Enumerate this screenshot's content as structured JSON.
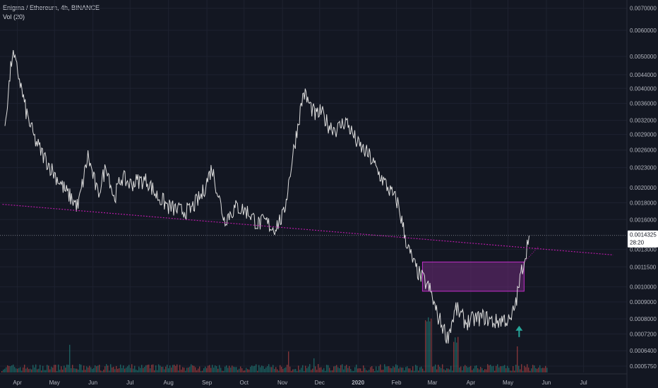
{
  "header": {
    "title": "Enigma / Ethereum, 4h, BINANCE",
    "indicator": "Vol (20)"
  },
  "colors": {
    "background": "#131722",
    "grid": "#1e2230",
    "price_line": "#dcdcdc",
    "trendline": "#b61aa6",
    "rectangle_fill": "#6d2a78",
    "rectangle_border": "#c02ec8",
    "last_price_label": "#ffffff",
    "arrow": "#26a69a",
    "volume_up": "#26a69a",
    "volume_down": "#ef5350",
    "axis_text": "#b2b5be"
  },
  "chart_data": {
    "type": "line",
    "title": "Enigma / Ethereum, 4h, BINANCE",
    "scale": "log",
    "grid": true,
    "ylim": [
      0.00055,
      0.0072
    ],
    "y_ticks": [
      "0.0070000",
      "0.0060000",
      "0.0050000",
      "0.0044000",
      "0.0040000",
      "0.0036000",
      "0.0032000",
      "0.0029000",
      "0.0026000",
      "0.0023000",
      "0.0020000",
      "0.0018000",
      "0.0016000",
      "0.0013000",
      "0.0011500",
      "0.0010000",
      "0.0009000",
      "0.0008000",
      "0.0007200",
      "0.0006400",
      "0.0005750"
    ],
    "x_ticks": [
      "Apr",
      "May",
      "Jun",
      "Jul",
      "Aug",
      "Sep",
      "Oct",
      "Nov",
      "Dec",
      "2020",
      "Feb",
      "Mar",
      "Apr",
      "May",
      "Jun",
      "Jul"
    ],
    "last_price": {
      "value": "0.0014325",
      "countdown": "28:20"
    },
    "series": [
      {
        "x": [
          "2019-03-22",
          "2019-03-28",
          "2019-04-02",
          "2019-04-08",
          "2019-04-15",
          "2019-04-22",
          "2019-05-01",
          "2019-05-10",
          "2019-05-20",
          "2019-05-28",
          "2019-06-05",
          "2019-06-12",
          "2019-06-18",
          "2019-06-24",
          "2019-07-01",
          "2019-07-08",
          "2019-07-15",
          "2019-07-22",
          "2019-08-01",
          "2019-08-10",
          "2019-08-18",
          "2019-08-28",
          "2019-09-05",
          "2019-09-15",
          "2019-09-25",
          "2019-10-05",
          "2019-10-12",
          "2019-10-18",
          "2019-10-25",
          "2019-11-02",
          "2019-11-10",
          "2019-11-18",
          "2019-11-24",
          "2019-11-28",
          "2019-12-02",
          "2019-12-08",
          "2019-12-15",
          "2019-12-22",
          "2020-01-01",
          "2020-01-10",
          "2020-01-18",
          "2020-01-25",
          "2020-02-02",
          "2020-02-10",
          "2020-02-16",
          "2020-02-20",
          "2020-02-23",
          "2020-02-28",
          "2020-03-05",
          "2020-03-10",
          "2020-03-13",
          "2020-03-20",
          "2020-03-28",
          "2020-04-05",
          "2020-04-12",
          "2020-04-20",
          "2020-04-28",
          "2020-05-03",
          "2020-05-08",
          "2020-05-12",
          "2020-05-15",
          "2020-05-18"
        ],
        "values": [
          0.0031,
          0.0051,
          0.0044,
          0.0034,
          0.0028,
          0.0025,
          0.0022,
          0.00195,
          0.00175,
          0.0025,
          0.0019,
          0.00235,
          0.00185,
          0.00215,
          0.00205,
          0.0021,
          0.0021,
          0.0019,
          0.00175,
          0.0017,
          0.0017,
          0.0019,
          0.0023,
          0.0016,
          0.00175,
          0.00168,
          0.00155,
          0.00158,
          0.0015,
          0.00165,
          0.0026,
          0.0039,
          0.0035,
          0.0033,
          0.0034,
          0.0031,
          0.003,
          0.0032,
          0.0027,
          0.0025,
          0.0022,
          0.002,
          0.0018,
          0.00132,
          0.00115,
          0.00108,
          0.00105,
          0.00098,
          0.00082,
          0.00075,
          0.0007,
          0.00086,
          0.00078,
          0.0008,
          0.00081,
          0.00078,
          0.0008,
          0.00078,
          0.00092,
          0.00112,
          0.00125,
          0.00143
        ]
      }
    ],
    "annotations": {
      "trendline": {
        "start": [
          "2019-03-20",
          0.00178
        ],
        "end": [
          "2020-07-25",
          0.00125
        ]
      },
      "rectangle": {
        "x": [
          "2020-02-22",
          "2020-05-14"
        ],
        "y": [
          0.00097,
          0.00119
        ]
      },
      "arrow": {
        "x": "2020-05-10",
        "y": 0.00074
      }
    }
  }
}
